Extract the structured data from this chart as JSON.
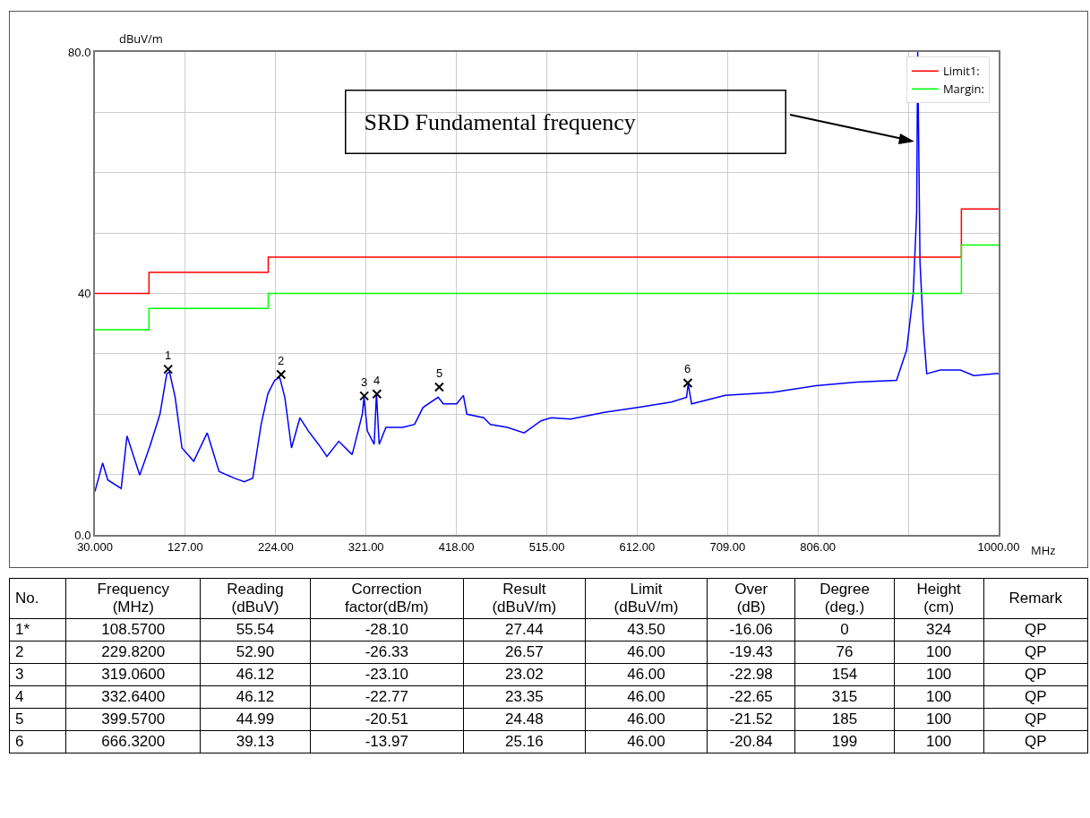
{
  "chart_data": {
    "type": "line",
    "xlabel": "MHz",
    "ylabel": "dBuV/m",
    "xlim": [
      30,
      1000
    ],
    "xticks": [
      {
        "value": 30,
        "label": "30.000"
      },
      {
        "value": 127,
        "label": "127.00"
      },
      {
        "value": 224,
        "label": "224.00"
      },
      {
        "value": 321,
        "label": "321.00"
      },
      {
        "value": 418,
        "label": "418.00"
      },
      {
        "value": 515,
        "label": "515.00"
      },
      {
        "value": 612,
        "label": "612.00"
      },
      {
        "value": 709,
        "label": "709.00"
      },
      {
        "value": 806,
        "label": "806.00"
      },
      {
        "value": 903,
        "label": null
      },
      {
        "value": 1000,
        "label": "1000.00"
      }
    ],
    "ylim": [
      0,
      80
    ],
    "yticks": [
      {
        "value": 0,
        "label": "0.0"
      },
      {
        "value": 10,
        "label": null
      },
      {
        "value": 20,
        "label": null
      },
      {
        "value": 30,
        "label": null
      },
      {
        "value": 40,
        "label": "40"
      },
      {
        "value": 50,
        "label": null
      },
      {
        "value": 60,
        "label": null
      },
      {
        "value": 70,
        "label": null
      },
      {
        "value": 80,
        "label": "80.0"
      }
    ],
    "grid": true,
    "legend": "top right",
    "series": [
      {
        "color": "#0000ff",
        "x": [
          30,
          38.3,
          43.8,
          58.2,
          64.4,
          78.1,
          89,
          99.8,
          107.1,
          110,
          116.1,
          123.4,
          136,
          150.5,
          163.2,
          179.5,
          190.3,
          199.4,
          208.4,
          215.7,
          222.9,
          228.3,
          233.8,
          241,
          250,
          259.1,
          270,
          279,
          291.7,
          306.1,
          317,
          318.8,
          322.4,
          329.7,
          332.2,
          335.1,
          342.3,
          360.4,
          373.1,
          382.1,
          398.4,
          403.9,
          418.3,
          425.5,
          429.2,
          447.3,
          454.5,
          472.6,
          490.7,
          508.8,
          519.7,
          540.6,
          576.7,
          612.7,
          648.8,
          665,
          666.8,
          670.4,
          706.5,
          757,
          803.9,
          847.1,
          890.4,
          901.2,
          908.4,
          912,
          913.1,
          915.6,
          919.2,
          922.8,
          937.3,
          958.9,
          973.3,
          996.8,
          1000
        ],
        "values": [
          7.2,
          11.9,
          9.1,
          7.7,
          16.4,
          9.9,
          14.7,
          20,
          26.7,
          27,
          22.8,
          14.4,
          12.2,
          16.9,
          10.5,
          9.4,
          8.8,
          9.4,
          18.3,
          23.4,
          25.6,
          26.1,
          22.8,
          14.4,
          19.4,
          17.2,
          15,
          13,
          15.5,
          13.3,
          20,
          22.8,
          17.2,
          15,
          23.4,
          15,
          17.8,
          17.8,
          18.3,
          21.1,
          22.8,
          21.7,
          21.7,
          23.1,
          20,
          19.4,
          18.3,
          17.8,
          16.9,
          18.9,
          19.4,
          19.2,
          20.3,
          21.1,
          22,
          22.8,
          25,
          21.7,
          23.1,
          23.6,
          24.7,
          25.3,
          25.6,
          30.6,
          40.1,
          53.5,
          80,
          45.1,
          34,
          26.7,
          27.3,
          27.3,
          26.4,
          26.7,
          26.7
        ]
      },
      {
        "type": "step",
        "name": "Limit1:",
        "color": "#ff0000",
        "x": [
          30,
          88,
          216,
          960,
          1000
        ],
        "values": [
          40,
          43.5,
          46,
          54,
          54
        ]
      },
      {
        "type": "step",
        "name": "Margin:",
        "color": "#00ff00",
        "x": [
          30,
          88,
          216,
          960,
          1000
        ],
        "values": [
          34,
          37.5,
          40,
          48,
          48
        ]
      },
      {
        "type": "scatter",
        "marker": "cross",
        "color": "#000000",
        "x": [
          108.57,
          229.82,
          319.06,
          332.64,
          399.57,
          666.32
        ],
        "values": [
          27.44,
          26.57,
          23.02,
          23.35,
          24.48,
          25.16
        ]
      }
    ],
    "annotations": [
      "SRD Fundamental frequency",
      {
        "text": "1",
        "x": 108.57,
        "y": 27.44
      },
      {
        "text": "2",
        "x": 229.82,
        "y": 26.57
      },
      {
        "text": "3",
        "x": 319.06,
        "y": 23.02
      },
      {
        "text": "4",
        "x": 332.64,
        "y": 23.35
      },
      {
        "text": "5",
        "x": 399.57,
        "y": 24.48
      },
      {
        "text": "6",
        "x": 666.32,
        "y": 25.16
      },
      "No.",
      "Frequency\n(MHz)",
      "Reading\n(dBuV)",
      "Correction\nfactor(dB/m)",
      "Result\n(dBuV/m)",
      "Limit\n(dBuV/m)",
      "Over\n(dB)",
      "Degree\n(deg.)",
      "Height\n(cm)",
      "Remark",
      "1*",
      "108.5700",
      "55.54",
      "-28.10",
      "27.44",
      "43.50",
      "-16.06",
      "0",
      "324",
      "QP",
      "2",
      "229.8200",
      "52.90",
      "-26.33",
      "26.57",
      "46.00",
      "-19.43",
      "76",
      "100",
      "QP",
      "3",
      "319.0600",
      "46.12",
      "-23.10",
      "23.02",
      "46.00",
      "-22.98",
      "154",
      "100",
      "QP",
      "4",
      "332.6400",
      "46.12",
      "-22.77",
      "23.35",
      "46.00",
      "-22.65",
      "315",
      "100",
      "QP",
      "5",
      "399.5700",
      "44.99",
      "-20.51",
      "24.48",
      "46.00",
      "-21.52",
      "185",
      "100",
      "QP",
      "6",
      "666.3200",
      "39.13",
      "-13.97",
      "25.16",
      "46.00",
      "-20.84",
      "199",
      "100",
      "QP"
    ]
  }
}
